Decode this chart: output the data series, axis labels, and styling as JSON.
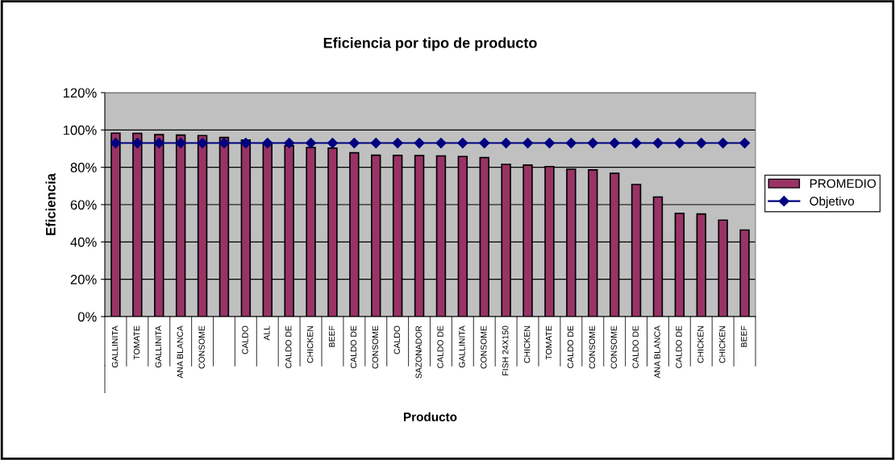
{
  "chart_data": {
    "type": "bar",
    "title": "Eficiencia por tipo de producto",
    "xlabel": "Producto",
    "ylabel": "Eficiencia",
    "categories": [
      "GALLINITA",
      "TOMATE",
      "GALLINITA",
      "ANA BLANCA",
      "CONSOME",
      null,
      "CALDO",
      "ALL",
      "CALDO DE",
      "CHICKEN",
      "BEEF",
      "CALDO DE",
      "CONSOME",
      "CALDO",
      "SAZONADOR",
      "CALDO DE",
      "GALLINITA",
      "CONSOME",
      "FISH 24X150",
      "CHICKEN",
      "TOMATE",
      "CALDO DE",
      "CONSOME",
      "CONSOME",
      "CALDO DE",
      "ANA BLANCA",
      "CALDO DE",
      "CHICKEN",
      "CHICKEN",
      "BEEF"
    ],
    "series": [
      {
        "name": "PROMEDIO",
        "color": "#993366",
        "values": [
          98.3,
          98.2,
          97.5,
          97.3,
          97.0,
          96.0,
          94.6,
          92.8,
          91.6,
          90.6,
          90.3,
          87.8,
          86.5,
          86.4,
          86.3,
          86.1,
          85.8,
          85.2,
          81.6,
          81.2,
          80.4,
          79.0,
          78.6,
          76.8,
          70.8,
          64.1,
          55.3,
          55.0,
          51.7,
          46.4
        ]
      },
      {
        "name": "Objetivo",
        "type": "line",
        "color": "#000080",
        "marker": "diamond",
        "values": [
          93,
          93,
          93,
          93,
          93,
          93,
          93,
          93,
          93,
          93,
          93,
          93,
          93,
          93,
          93,
          93,
          93,
          93,
          93,
          93,
          93,
          93,
          93,
          93,
          93,
          93,
          93,
          93,
          93,
          93
        ]
      }
    ],
    "ylim": [
      0,
      120
    ],
    "yticks": [
      {
        "value": 0,
        "label": "0%"
      },
      {
        "value": 20,
        "label": "20%"
      },
      {
        "value": 40,
        "label": "40%"
      },
      {
        "value": 60,
        "label": "60%"
      },
      {
        "value": 80,
        "label": "80%"
      },
      {
        "value": 100,
        "label": "100%"
      },
      {
        "value": 120,
        "label": "120%"
      }
    ],
    "grid": "y",
    "legend": "right"
  }
}
